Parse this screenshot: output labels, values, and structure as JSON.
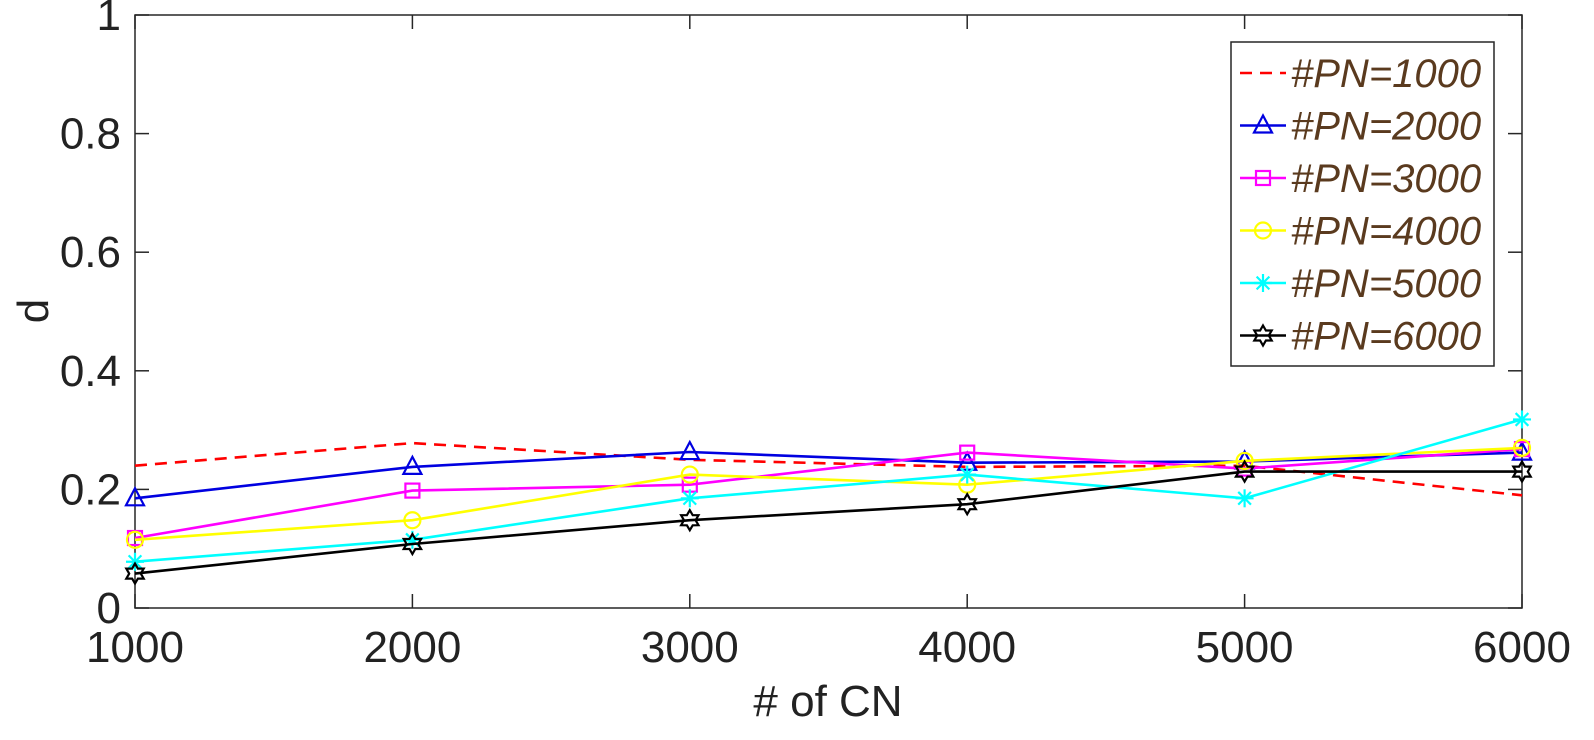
{
  "chart_data": {
    "type": "line",
    "xlabel": "# of CN",
    "ylabel": "d",
    "x": [
      1000,
      2000,
      3000,
      4000,
      5000,
      6000
    ],
    "xlim": [
      1000,
      6000
    ],
    "ylim": [
      0,
      1
    ],
    "xticks": [
      1000,
      2000,
      3000,
      4000,
      5000,
      6000
    ],
    "yticks": [
      0,
      0.2,
      0.4,
      0.6,
      0.8,
      1
    ],
    "ytick_labels": [
      "0",
      "0.2",
      "0.4",
      "0.6",
      "0.8",
      "1"
    ],
    "grid": false,
    "legend_position": "top-right",
    "series": [
      {
        "name": "#PN=1000",
        "values": [
          0.24,
          0.278,
          0.25,
          0.238,
          0.24,
          0.19
        ],
        "color": "#ff0000",
        "dash": true,
        "marker": "none"
      },
      {
        "name": "#PN=2000",
        "values": [
          0.185,
          0.238,
          0.263,
          0.245,
          0.247,
          0.262
        ],
        "color": "#0000e0",
        "dash": false,
        "marker": "triangle"
      },
      {
        "name": "#PN=3000",
        "values": [
          0.118,
          0.198,
          0.208,
          0.262,
          0.235,
          0.268
        ],
        "color": "#ff00ff",
        "dash": false,
        "marker": "square"
      },
      {
        "name": "#PN=4000",
        "values": [
          0.115,
          0.148,
          0.225,
          0.208,
          0.248,
          0.27
        ],
        "color": "#ffff00",
        "dash": false,
        "marker": "circle"
      },
      {
        "name": "#PN=5000",
        "values": [
          0.078,
          0.115,
          0.185,
          0.225,
          0.185,
          0.318
        ],
        "color": "#00ffff",
        "dash": false,
        "marker": "asterisk"
      },
      {
        "name": "#PN=6000",
        "values": [
          0.058,
          0.108,
          0.148,
          0.175,
          0.23,
          0.23
        ],
        "color": "#000000",
        "dash": false,
        "marker": "hexagram"
      }
    ]
  }
}
